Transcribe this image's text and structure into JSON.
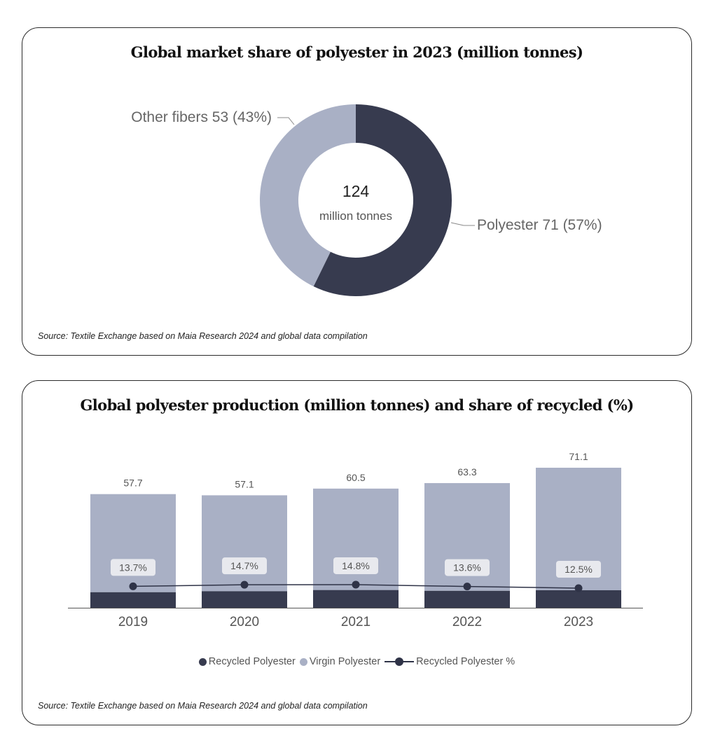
{
  "colors": {
    "dark": "#373b4f",
    "light": "#a9b0c5",
    "line": "#2f3347",
    "label_bg": "#e8e9ee"
  },
  "chart1": {
    "title": "Global market share of polyester in 2023 (million tonnes)",
    "source": "Source: Textile Exchange based on Maia Research 2024 and global data compilation",
    "center_value": "124",
    "center_unit": "million tonnes",
    "chart_data": {
      "type": "pie",
      "donut": true,
      "total": 124,
      "slices": [
        {
          "name": "Polyester",
          "value": 71,
          "percent": 57,
          "label": "Polyester 71 (57%)",
          "color": "#373b4f"
        },
        {
          "name": "Other fibers",
          "value": 53,
          "percent": 43,
          "label": "Other fibers 53 (43%)",
          "color": "#a9b0c5"
        }
      ]
    }
  },
  "chart2": {
    "title": "Global polyester production (million tonnes) and share of recycled (%)",
    "source": "Source: Textile Exchange based on Maia Research 2024 and global data compilation",
    "legend": {
      "recycled": "Recycled Polyester",
      "virgin": "Virgin Polyester",
      "recycled_pct": "Recycled Polyester %"
    },
    "chart_data": {
      "type": "bar",
      "stacked": true,
      "categories": [
        "2019",
        "2020",
        "2021",
        "2022",
        "2023"
      ],
      "totals": [
        57.7,
        57.1,
        60.5,
        63.3,
        71.1
      ],
      "total_labels": [
        "57.7",
        "57.1",
        "60.5",
        "63.3",
        "71.1"
      ],
      "series": [
        {
          "name": "Recycled Polyester",
          "values": [
            7.9,
            8.4,
            9.0,
            8.6,
            8.9
          ],
          "color": "#373b4f"
        },
        {
          "name": "Virgin Polyester",
          "values": [
            49.8,
            48.7,
            51.5,
            54.7,
            62.2
          ],
          "color": "#a9b0c5"
        }
      ],
      "line_series": {
        "name": "Recycled Polyester %",
        "values": [
          13.7,
          14.7,
          14.8,
          13.6,
          12.5
        ],
        "labels": [
          "13.7%",
          "14.7%",
          "14.8%",
          "13.6%",
          "12.5%"
        ],
        "color": "#2f3347"
      },
      "ylim": [
        0,
        71.1
      ],
      "legend_position": "bottom-center"
    }
  }
}
